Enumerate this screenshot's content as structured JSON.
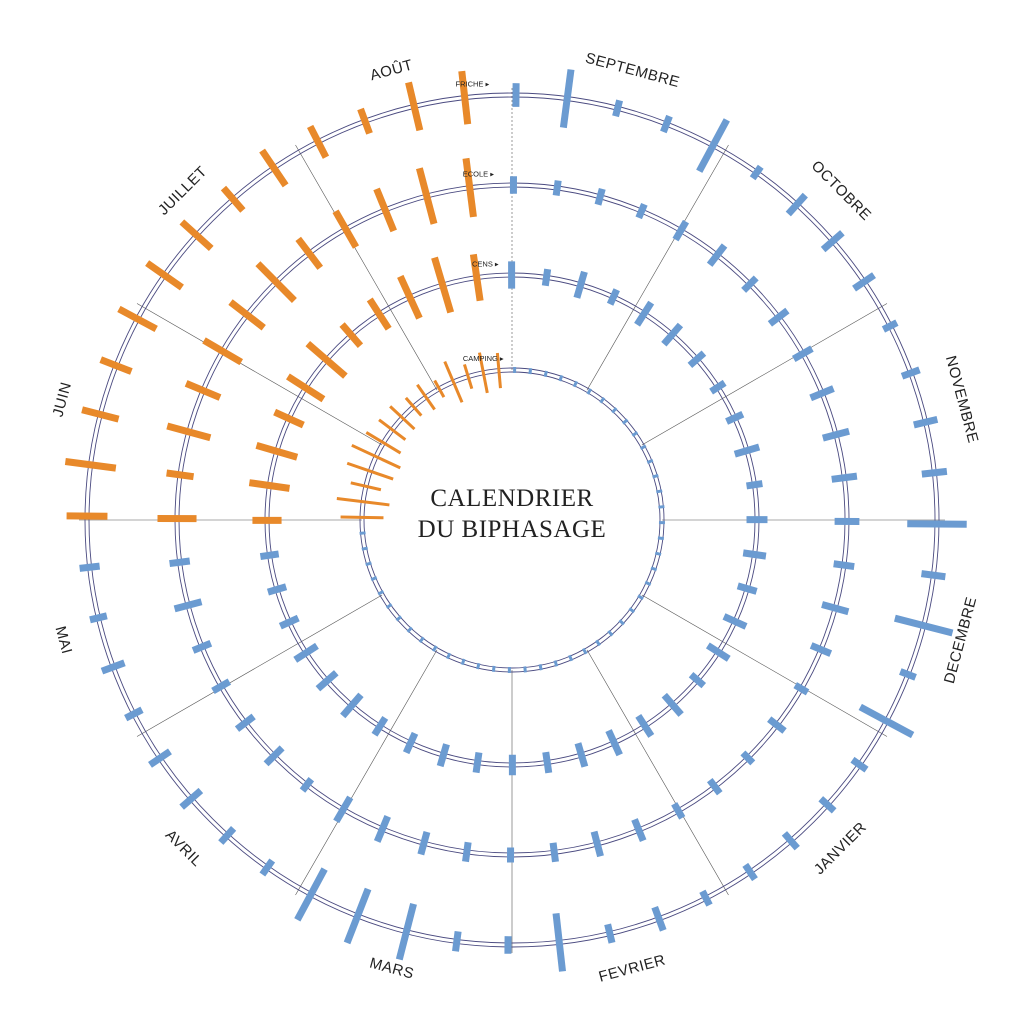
{
  "title": {
    "line1": "CALENDRIER",
    "line2": "DU BIPHASAGE"
  },
  "rings": [
    {
      "label": "CAMPING"
    },
    {
      "label": "CENS"
    },
    {
      "label": "ECOLE"
    },
    {
      "label": "FRICHE"
    }
  ],
  "months": [
    {
      "label": "SEPTEMBRE"
    },
    {
      "label": "OCTOBRE"
    },
    {
      "label": "NOVEMBRE"
    },
    {
      "label": "DECEMBRE"
    },
    {
      "label": "JANVIER"
    },
    {
      "label": "FEVRIER"
    },
    {
      "label": "MARS"
    },
    {
      "label": "AVRIL"
    },
    {
      "label": "MAI"
    },
    {
      "label": "JUIN"
    },
    {
      "label": "JUILLET"
    },
    {
      "label": "AOÛT"
    }
  ],
  "colors": {
    "summer": "#e8892a",
    "rest": "#6b9bd1",
    "ring": "#4a4a80",
    "divider": "#555555"
  }
}
